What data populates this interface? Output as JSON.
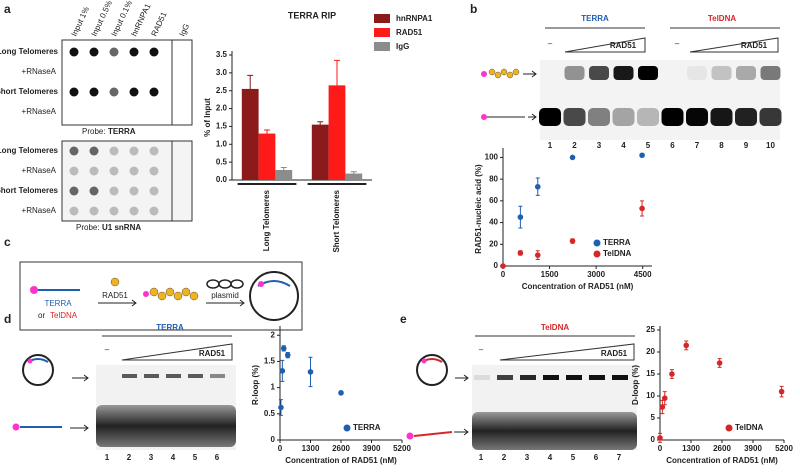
{
  "chart_data": [
    {
      "type": "bar",
      "title": "TERRA RIP",
      "y_label": "% of Input",
      "categories": [
        "Long Telomeres",
        "Short Telomeres"
      ],
      "series": [
        {
          "name": "hnRNPA1",
          "color": "#8b1a1a",
          "values": [
            2.55,
            1.55
          ],
          "errors": [
            0.38,
            0.08
          ]
        },
        {
          "name": "RAD51",
          "color": "#ff1a1a",
          "values": [
            1.3,
            2.65
          ],
          "errors": [
            0.1,
            0.7
          ]
        },
        {
          "name": "IgG",
          "color": "#8c8c8c",
          "values": [
            0.28,
            0.18
          ],
          "errors": [
            0.07,
            0.05
          ]
        }
      ],
      "ylim": [
        0,
        3.5
      ],
      "yticks": [
        {
          "value": 0,
          "label": "0.0"
        },
        0.5,
        {
          "value": 1,
          "label": "1.0"
        },
        1.5,
        {
          "value": 2,
          "label": "2.0"
        },
        2.5,
        {
          "value": 3,
          "label": "3.0"
        },
        3.5
      ],
      "legend": "upper right"
    },
    {
      "type": "scatter",
      "x_label": "Concentration of RAD51 (nM)",
      "y_label": "RAD51-nucleic acid (%)",
      "series": [
        {
          "name": "TERRA",
          "color": "#1f5fb0",
          "x": [
            560,
            1120,
            2240,
            4480
          ],
          "values": [
            45,
            73,
            100,
            102
          ],
          "errors": [
            10,
            8,
            1,
            1
          ]
        },
        {
          "name": "TelDNA",
          "color": "#d62728",
          "x": [
            0,
            560,
            1120,
            2240,
            4480
          ],
          "values": [
            0,
            12,
            10,
            23,
            53
          ],
          "errors": [
            0,
            2,
            4,
            2,
            7
          ]
        }
      ],
      "xlim": [
        0,
        4800
      ],
      "ylim": [
        0,
        105
      ],
      "xticks": [
        0,
        1500,
        3000,
        4500
      ],
      "yticks": [
        0,
        20,
        40,
        60,
        80,
        100
      ],
      "legend": "lower right"
    },
    {
      "type": "scatter",
      "x_label": "Concentration of RAD51 (nM)",
      "y_label": "R-loop (%)",
      "series": [
        {
          "name": "TERRA",
          "color": "#1f5fb0",
          "x": [
            40,
            100,
            160,
            330,
            1300,
            2600
          ],
          "values": [
            0.62,
            1.32,
            1.75,
            1.62,
            1.3,
            0.9
          ],
          "errors": [
            0.15,
            0.2,
            0.05,
            0.05,
            0.28,
            0.03
          ]
        }
      ],
      "xlim": [
        0,
        5200
      ],
      "ylim": [
        0,
        2.1
      ],
      "xticks": [
        0,
        1300,
        2600,
        3900,
        5200
      ],
      "yticks": [
        0,
        0.5,
        1,
        1.5,
        2
      ],
      "legend": "lower right"
    },
    {
      "type": "scatter",
      "x_label": "Concentration of RAD51 (nM)",
      "y_label": "D-loop (%)",
      "series": [
        {
          "name": "TelDNA",
          "color": "#d62728",
          "x": [
            0,
            100,
            200,
            500,
            1100,
            2500,
            5100
          ],
          "values": [
            0.5,
            7.5,
            9.5,
            15,
            21.5,
            17.5,
            11
          ],
          "errors": [
            1,
            1.5,
            1.5,
            1,
            1,
            1,
            1.2
          ]
        }
      ],
      "xlim": [
        0,
        5200
      ],
      "ylim": [
        0,
        25
      ],
      "xticks": [
        0,
        1300,
        2600,
        3900,
        5200
      ],
      "yticks": [
        0,
        5,
        10,
        15,
        20,
        25
      ],
      "legend": "lower right"
    }
  ],
  "figure": {
    "panel_letters": [
      "a",
      "b",
      "c",
      "d",
      "e"
    ],
    "a": {
      "columns": [
        "Input 1%",
        "Input 0.5%",
        "Input 0.1%",
        "hnRNPA1",
        "RAD51",
        "IgG"
      ],
      "blot1": {
        "rows": [
          "Long Telomeres",
          "+RNaseA",
          "Short Telomeres",
          "+RNaseA"
        ],
        "probe_prefix": "Probe:",
        "probe": "TERRA"
      },
      "blot2": {
        "rows": [
          "Long Telomeres",
          "+RNaseA",
          "Short Telomeres",
          "+RNaseA"
        ],
        "probe_prefix": "Probe:",
        "probe": "U1 snRNA"
      }
    },
    "b": {
      "gel_titles": [
        "TERRA",
        "TelDNA"
      ],
      "minus": [
        "–",
        "–"
      ],
      "rad51": [
        "RAD51",
        "RAD51"
      ],
      "lanes": [
        "1",
        "2",
        "3",
        "4",
        "5",
        "6",
        "7",
        "8",
        "9",
        "10"
      ]
    },
    "c": {
      "terra": "TERRA",
      "or": "or",
      "teldna": "TelDNA",
      "rad51": "RAD51",
      "plasmid": "plasmid"
    },
    "d": {
      "gel_title": "TERRA",
      "minus": "–",
      "rad51": "RAD51",
      "lanes": [
        "1",
        "2",
        "3",
        "4",
        "5",
        "6"
      ]
    },
    "e": {
      "gel_title": "TelDNA",
      "minus": "–",
      "rad51": "RAD51",
      "lanes": [
        "1",
        "2",
        "3",
        "4",
        "5",
        "6",
        "7"
      ]
    }
  }
}
